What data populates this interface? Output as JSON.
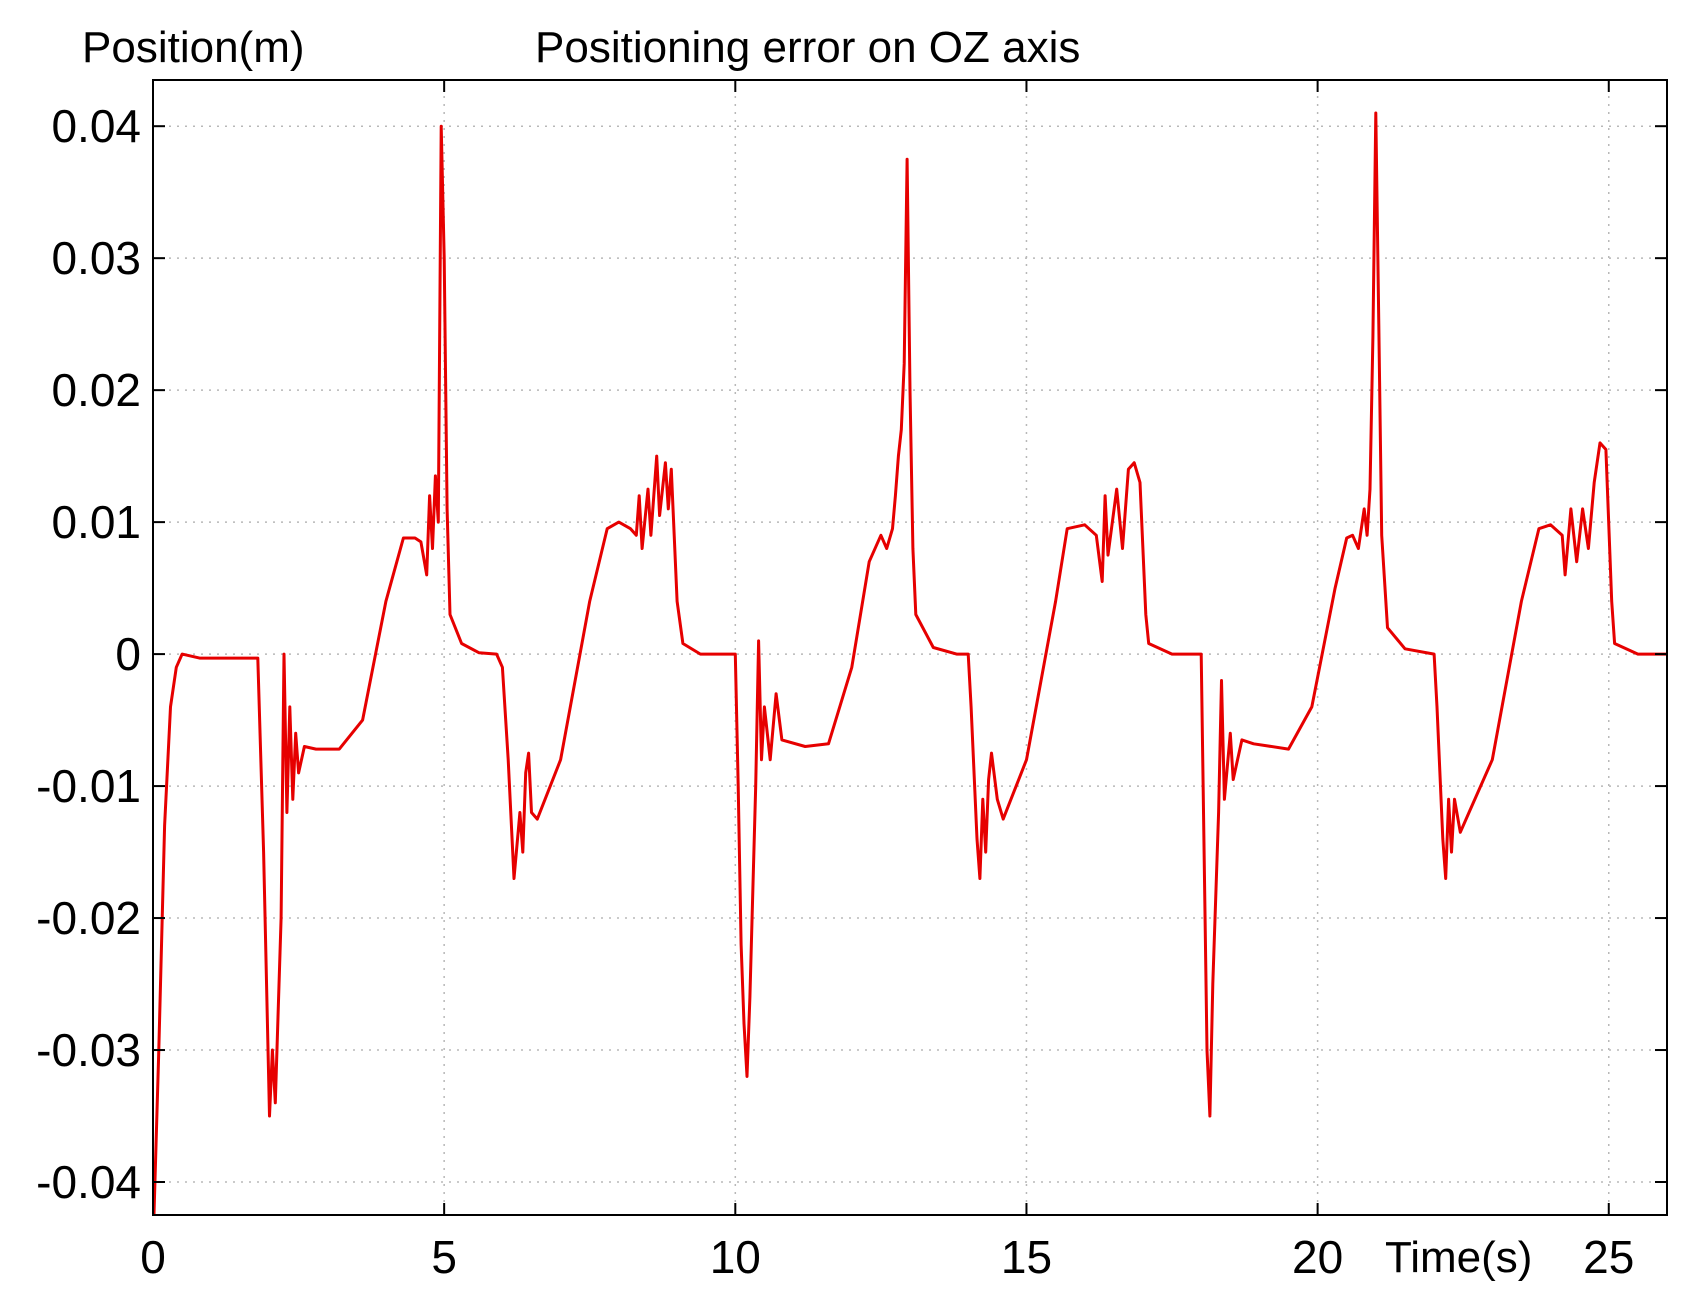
{
  "chart_data": {
    "type": "line",
    "title": "Positioning error on OZ axis",
    "ylabel": "Position(m)",
    "xlabel": "Time(s)",
    "xlim": [
      0,
      26
    ],
    "ylim": [
      -0.0425,
      0.0435
    ],
    "xticks": [
      0,
      5,
      10,
      15,
      20,
      25
    ],
    "xtick_labels": [
      "0",
      "5",
      "10",
      "15",
      "20",
      "25"
    ],
    "yticks": [
      0.04,
      0.03,
      0.02,
      0.01,
      0,
      -0.01,
      -0.02,
      -0.03,
      -0.04
    ],
    "ytick_labels": [
      "0.04",
      "0.03",
      "0.02",
      "0.01",
      "0",
      "-0.01",
      "-0.02",
      "-0.03",
      "-0.04"
    ],
    "grid": true,
    "series": [
      {
        "color": "#e60000",
        "points": [
          [
            0.0,
            -0.045
          ],
          [
            0.1,
            -0.03
          ],
          [
            0.2,
            -0.013
          ],
          [
            0.3,
            -0.004
          ],
          [
            0.4,
            -0.001
          ],
          [
            0.5,
            0.0
          ],
          [
            0.8,
            -0.0003
          ],
          [
            1.8,
            -0.0003
          ],
          [
            1.9,
            -0.015
          ],
          [
            2.0,
            -0.035
          ],
          [
            2.05,
            -0.03
          ],
          [
            2.1,
            -0.034
          ],
          [
            2.2,
            -0.02
          ],
          [
            2.25,
            0.0
          ],
          [
            2.3,
            -0.012
          ],
          [
            2.35,
            -0.004
          ],
          [
            2.4,
            -0.011
          ],
          [
            2.45,
            -0.006
          ],
          [
            2.5,
            -0.009
          ],
          [
            2.6,
            -0.007
          ],
          [
            2.8,
            -0.0072
          ],
          [
            3.2,
            -0.0072
          ],
          [
            3.6,
            -0.005
          ],
          [
            4.0,
            0.004
          ],
          [
            4.3,
            0.0088
          ],
          [
            4.5,
            0.0088
          ],
          [
            4.6,
            0.0085
          ],
          [
            4.7,
            0.006
          ],
          [
            4.75,
            0.012
          ],
          [
            4.8,
            0.008
          ],
          [
            4.85,
            0.0135
          ],
          [
            4.9,
            0.01
          ],
          [
            4.95,
            0.04
          ],
          [
            5.0,
            0.03
          ],
          [
            5.05,
            0.011
          ],
          [
            5.1,
            0.003
          ],
          [
            5.3,
            0.0008
          ],
          [
            5.6,
            0.0001
          ],
          [
            5.9,
            0.0
          ],
          [
            6.0,
            -0.001
          ],
          [
            6.1,
            -0.008
          ],
          [
            6.2,
            -0.017
          ],
          [
            6.3,
            -0.012
          ],
          [
            6.35,
            -0.015
          ],
          [
            6.4,
            -0.009
          ],
          [
            6.45,
            -0.0075
          ],
          [
            6.5,
            -0.012
          ],
          [
            6.6,
            -0.0125
          ],
          [
            7.0,
            -0.008
          ],
          [
            7.5,
            0.004
          ],
          [
            7.8,
            0.0095
          ],
          [
            8.0,
            0.01
          ],
          [
            8.2,
            0.0095
          ],
          [
            8.3,
            0.009
          ],
          [
            8.35,
            0.012
          ],
          [
            8.4,
            0.008
          ],
          [
            8.5,
            0.0125
          ],
          [
            8.55,
            0.009
          ],
          [
            8.65,
            0.015
          ],
          [
            8.7,
            0.0105
          ],
          [
            8.8,
            0.0145
          ],
          [
            8.85,
            0.011
          ],
          [
            8.9,
            0.014
          ],
          [
            9.0,
            0.004
          ],
          [
            9.1,
            0.0008
          ],
          [
            9.4,
            0.0
          ],
          [
            10.0,
            0.0
          ],
          [
            10.05,
            -0.01
          ],
          [
            10.1,
            -0.022
          ],
          [
            10.15,
            -0.028
          ],
          [
            10.2,
            -0.032
          ],
          [
            10.25,
            -0.026
          ],
          [
            10.35,
            -0.01
          ],
          [
            10.4,
            0.001
          ],
          [
            10.45,
            -0.008
          ],
          [
            10.5,
            -0.004
          ],
          [
            10.6,
            -0.008
          ],
          [
            10.7,
            -0.003
          ],
          [
            10.8,
            -0.0065
          ],
          [
            11.2,
            -0.007
          ],
          [
            11.6,
            -0.0068
          ],
          [
            12.0,
            -0.001
          ],
          [
            12.3,
            0.007
          ],
          [
            12.5,
            0.009
          ],
          [
            12.6,
            0.008
          ],
          [
            12.7,
            0.0095
          ],
          [
            12.75,
            0.012
          ],
          [
            12.8,
            0.015
          ],
          [
            12.85,
            0.017
          ],
          [
            12.9,
            0.022
          ],
          [
            12.95,
            0.0375
          ],
          [
            13.0,
            0.02
          ],
          [
            13.05,
            0.008
          ],
          [
            13.1,
            0.003
          ],
          [
            13.4,
            0.0005
          ],
          [
            13.8,
            0.0
          ],
          [
            14.0,
            0.0
          ],
          [
            14.05,
            -0.004
          ],
          [
            14.15,
            -0.014
          ],
          [
            14.2,
            -0.017
          ],
          [
            14.25,
            -0.011
          ],
          [
            14.3,
            -0.015
          ],
          [
            14.35,
            -0.0095
          ],
          [
            14.4,
            -0.0075
          ],
          [
            14.5,
            -0.011
          ],
          [
            14.6,
            -0.0125
          ],
          [
            15.0,
            -0.008
          ],
          [
            15.5,
            0.004
          ],
          [
            15.7,
            0.0095
          ],
          [
            16.0,
            0.0098
          ],
          [
            16.2,
            0.009
          ],
          [
            16.3,
            0.0055
          ],
          [
            16.35,
            0.012
          ],
          [
            16.4,
            0.0075
          ],
          [
            16.55,
            0.0125
          ],
          [
            16.65,
            0.008
          ],
          [
            16.75,
            0.014
          ],
          [
            16.85,
            0.0145
          ],
          [
            16.95,
            0.013
          ],
          [
            17.05,
            0.003
          ],
          [
            17.1,
            0.0008
          ],
          [
            17.5,
            0.0
          ],
          [
            18.0,
            0.0
          ],
          [
            18.05,
            -0.015
          ],
          [
            18.1,
            -0.03
          ],
          [
            18.15,
            -0.035
          ],
          [
            18.2,
            -0.025
          ],
          [
            18.3,
            -0.012
          ],
          [
            18.35,
            -0.002
          ],
          [
            18.4,
            -0.011
          ],
          [
            18.5,
            -0.006
          ],
          [
            18.55,
            -0.0095
          ],
          [
            18.7,
            -0.0065
          ],
          [
            18.9,
            -0.0068
          ],
          [
            19.5,
            -0.0072
          ],
          [
            19.9,
            -0.004
          ],
          [
            20.3,
            0.005
          ],
          [
            20.5,
            0.0088
          ],
          [
            20.6,
            0.009
          ],
          [
            20.7,
            0.008
          ],
          [
            20.8,
            0.011
          ],
          [
            20.85,
            0.009
          ],
          [
            20.9,
            0.0125
          ],
          [
            20.95,
            0.024
          ],
          [
            21.0,
            0.041
          ],
          [
            21.05,
            0.025
          ],
          [
            21.1,
            0.009
          ],
          [
            21.2,
            0.002
          ],
          [
            21.5,
            0.0004
          ],
          [
            22.0,
            0.0
          ],
          [
            22.05,
            -0.004
          ],
          [
            22.15,
            -0.014
          ],
          [
            22.2,
            -0.017
          ],
          [
            22.25,
            -0.011
          ],
          [
            22.3,
            -0.015
          ],
          [
            22.35,
            -0.011
          ],
          [
            22.45,
            -0.0135
          ],
          [
            22.6,
            -0.012
          ],
          [
            23.0,
            -0.008
          ],
          [
            23.5,
            0.004
          ],
          [
            23.8,
            0.0095
          ],
          [
            24.0,
            0.0098
          ],
          [
            24.2,
            0.009
          ],
          [
            24.25,
            0.006
          ],
          [
            24.35,
            0.011
          ],
          [
            24.45,
            0.007
          ],
          [
            24.55,
            0.011
          ],
          [
            24.65,
            0.008
          ],
          [
            24.75,
            0.013
          ],
          [
            24.85,
            0.016
          ],
          [
            24.95,
            0.0155
          ],
          [
            25.05,
            0.004
          ],
          [
            25.1,
            0.0008
          ],
          [
            25.5,
            0.0
          ],
          [
            26.0,
            0.0
          ]
        ]
      }
    ]
  }
}
